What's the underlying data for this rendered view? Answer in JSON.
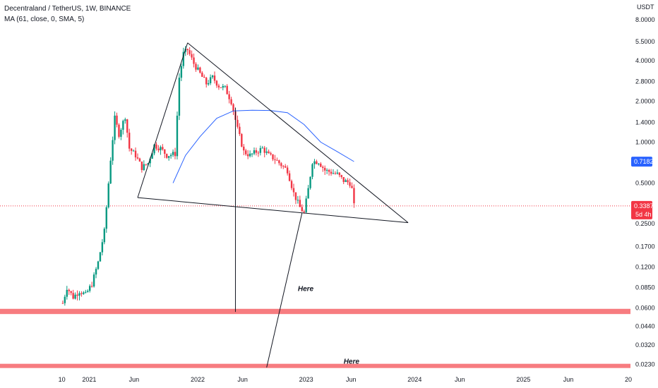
{
  "header": {
    "title": "Decentraland / TetherUS, 1W, BINANCE",
    "indicator": "MA (61, close, 0, SMA, 5)"
  },
  "chart_data": {
    "type": "candlestick",
    "currency_label": "USDT",
    "y_scale": "log",
    "ylim": [
      0.021,
      8.8
    ],
    "y_ticks": [
      "8.0000",
      "5.5000",
      "4.0000",
      "2.8000",
      "2.0000",
      "1.4000",
      "1.0000",
      "0.5000",
      "0.2500",
      "0.1700",
      "0.1200",
      "0.0850",
      "0.0600",
      "0.0440",
      "0.0320",
      "0.0230"
    ],
    "x_ticks": [
      "10",
      "2021",
      "Jun",
      "2022",
      "Jun",
      "2023",
      "Jun",
      "2024",
      "Jun",
      "2025",
      "Jun",
      "20"
    ],
    "current_price": {
      "label": "0.3387",
      "countdown": "5d 4h",
      "value": 0.3387,
      "color": "#f23645"
    },
    "ma_last": {
      "label": "0.7182",
      "value": 0.7182,
      "color": "#2962ff"
    },
    "ma_points": [
      [
        "2021-10-10",
        0.5
      ],
      [
        "2021-11-21",
        0.8
      ],
      [
        "2022-01-09",
        1.1
      ],
      [
        "2022-03-06",
        1.5
      ],
      [
        "2022-05-01",
        1.7
      ],
      [
        "2022-07-03",
        1.72
      ],
      [
        "2022-09-04",
        1.71
      ],
      [
        "2022-10-30",
        1.65
      ],
      [
        "2022-12-25",
        1.35
      ],
      [
        "2023-02-19",
        1.0
      ],
      [
        "2023-04-16",
        0.85
      ],
      [
        "2023-06-11",
        0.72
      ]
    ],
    "price_path": [
      [
        "2020-10-04",
        0.065
      ],
      [
        "2020-10-18",
        0.085
      ],
      [
        "2020-11-08",
        0.072
      ],
      [
        "2020-11-29",
        0.08
      ],
      [
        "2020-12-20",
        0.075
      ],
      [
        "2021-01-10",
        0.09
      ],
      [
        "2021-01-31",
        0.13
      ],
      [
        "2021-02-21",
        0.22
      ],
      [
        "2021-03-14",
        0.75
      ],
      [
        "2021-03-28",
        1.5
      ],
      [
        "2021-04-11",
        1.15
      ],
      [
        "2021-05-02",
        1.55
      ],
      [
        "2021-05-16",
        0.9
      ],
      [
        "2021-06-06",
        0.8
      ],
      [
        "2021-06-27",
        0.65
      ],
      [
        "2021-07-18",
        0.7
      ],
      [
        "2021-08-08",
        0.95
      ],
      [
        "2021-08-29",
        0.9
      ],
      [
        "2021-09-19",
        0.8
      ],
      [
        "2021-10-17",
        0.82
      ],
      [
        "2021-10-31",
        3.0
      ],
      [
        "2021-11-14",
        4.5
      ],
      [
        "2021-11-28",
        4.8
      ],
      [
        "2021-12-19",
        3.8
      ],
      [
        "2022-01-09",
        3.2
      ],
      [
        "2022-01-30",
        2.7
      ],
      [
        "2022-02-20",
        3.0
      ],
      [
        "2022-03-13",
        2.6
      ],
      [
        "2022-04-03",
        2.5
      ],
      [
        "2022-04-24",
        2.0
      ],
      [
        "2022-05-15",
        1.25
      ],
      [
        "2022-06-05",
        0.85
      ],
      [
        "2022-06-26",
        0.8
      ],
      [
        "2022-07-17",
        0.85
      ],
      [
        "2022-08-07",
        0.9
      ],
      [
        "2022-08-28",
        0.8
      ],
      [
        "2022-09-18",
        0.75
      ],
      [
        "2022-10-09",
        0.68
      ],
      [
        "2022-10-30",
        0.62
      ],
      [
        "2022-11-20",
        0.42
      ],
      [
        "2022-12-11",
        0.33
      ],
      [
        "2022-12-25",
        0.3
      ],
      [
        "2023-01-08",
        0.45
      ],
      [
        "2023-01-22",
        0.72
      ],
      [
        "2023-02-12",
        0.72
      ],
      [
        "2023-03-05",
        0.62
      ],
      [
        "2023-03-26",
        0.6
      ],
      [
        "2023-04-16",
        0.58
      ],
      [
        "2023-05-07",
        0.52
      ],
      [
        "2023-05-28",
        0.5
      ],
      [
        "2023-06-04",
        0.45
      ],
      [
        "2023-06-11",
        0.3387
      ]
    ],
    "annotations": [
      {
        "text": "Here",
        "x": "2022-12-04",
        "y": 0.08
      },
      {
        "text": "Here",
        "x": "2023-05-07",
        "y": 0.0232
      }
    ],
    "support_zones": [
      {
        "value_min": 0.054,
        "value_max": 0.059,
        "color": "#f77c80"
      },
      {
        "value_min": 0.0218,
        "value_max": 0.0232,
        "color": "#f77c80"
      }
    ],
    "trend_lines": [
      {
        "from": [
          "2021-06-13",
          0.39
        ],
        "to": [
          "2021-11-28",
          5.4
        ]
      },
      {
        "from": [
          "2021-11-28",
          5.4
        ],
        "to": [
          "2023-12-10",
          0.255
        ]
      },
      {
        "from": [
          "2021-06-13",
          0.39
        ],
        "to": [
          "2023-12-10",
          0.255
        ]
      },
      {
        "from": [
          "2022-05-08",
          1.8
        ],
        "to": [
          "2022-05-08",
          0.056
        ]
      },
      {
        "from": [
          "2022-12-18",
          0.3
        ],
        "to": [
          "2022-08-21",
          0.0218
        ]
      }
    ]
  }
}
